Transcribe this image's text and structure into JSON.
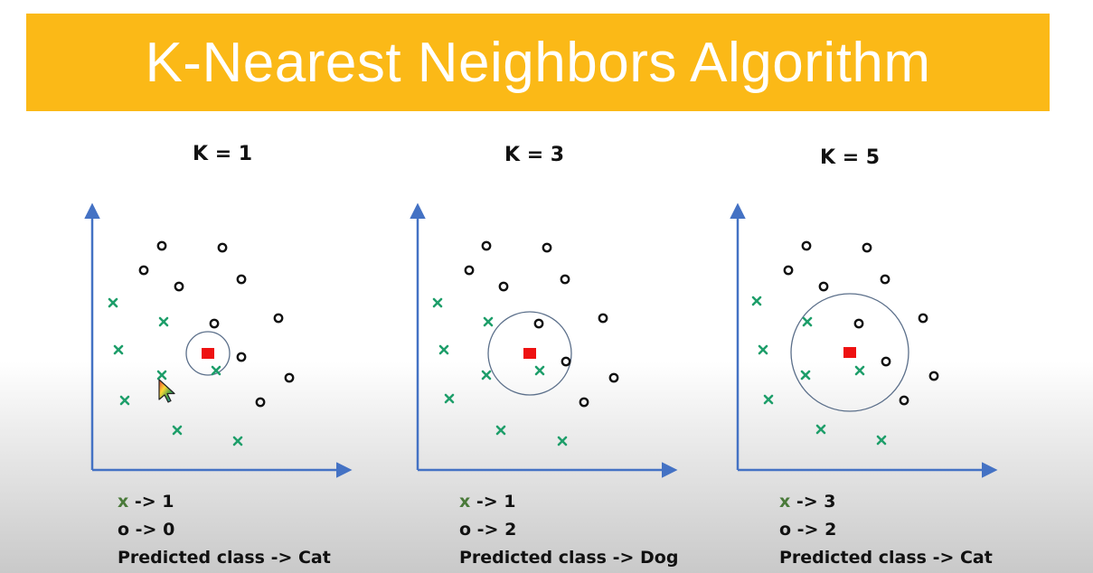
{
  "banner": {
    "title": "K-Nearest Neighbors Algorithm",
    "color": "#FBB917"
  },
  "colors": {
    "axis": "#4472C4",
    "x_marker": "#1e9e6a",
    "o_marker": "#111111",
    "query": "#ee1111",
    "circle": "#5b6f8a"
  },
  "panels": [
    {
      "k_label": "K = 1",
      "x_line": {
        "mark": "x",
        "text": " -> 1"
      },
      "o_line": "o -> 0",
      "predicted": "Predicted class -> Cat"
    },
    {
      "k_label": "K = 3",
      "x_line": {
        "mark": "x",
        "text": " -> 1"
      },
      "o_line": "o -> 2",
      "predicted": "Predicted class -> Dog"
    },
    {
      "k_label": "K = 5",
      "x_line": {
        "mark": "x",
        "text": " -> 3"
      },
      "o_line": "o -> 2",
      "predicted": "Predicted class -> Cat"
    }
  ]
}
